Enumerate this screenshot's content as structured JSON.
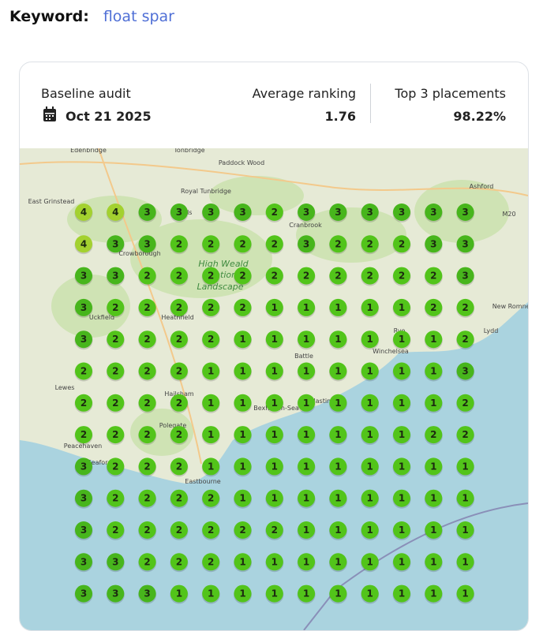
{
  "keyword": {
    "label": "Keyword:",
    "value": "float spar"
  },
  "stats": {
    "baseline_label": "Baseline audit",
    "baseline_date": "Oct 21 2025",
    "average_label": "Average ranking",
    "average_value": "1.76",
    "top3_label": "Top 3 placements",
    "top3_value": "98.22%"
  },
  "map": {
    "labels": [
      "Edenbridge",
      "Tonbridge",
      "Paddock Wood",
      "East Grinstead",
      "Royal Tunbridge",
      "Wells",
      "Cranbrook",
      "Ashford",
      "M20",
      "Crowborough",
      "High Weald",
      "National",
      "Landscape",
      "New Romney",
      "Lydd",
      "Rye",
      "Winchelsea",
      "Uckfield",
      "Heathfield",
      "Battle",
      "Lewes",
      "Hailsham",
      "Hastings",
      "Bexhill-on-Sea",
      "Polegate",
      "Peacehaven",
      "Seaford",
      "Eastbourne"
    ],
    "rank_colors": [
      "#52c41a",
      "#52c41a",
      "#47b51c",
      "#a3d12f"
    ],
    "grid": [
      [
        4,
        4,
        3,
        3,
        3,
        3,
        2,
        3,
        3,
        3,
        3,
        3,
        3
      ],
      [
        4,
        3,
        3,
        2,
        2,
        2,
        2,
        3,
        2,
        2,
        2,
        3,
        3
      ],
      [
        3,
        3,
        2,
        2,
        2,
        2,
        2,
        2,
        2,
        2,
        2,
        2,
        3
      ],
      [
        3,
        2,
        2,
        2,
        2,
        2,
        1,
        1,
        1,
        1,
        1,
        2,
        2
      ],
      [
        3,
        2,
        2,
        2,
        2,
        1,
        1,
        1,
        1,
        1,
        1,
        1,
        2
      ],
      [
        2,
        2,
        2,
        2,
        1,
        1,
        1,
        1,
        1,
        1,
        1,
        1,
        3
      ],
      [
        2,
        2,
        2,
        2,
        1,
        1,
        1,
        1,
        1,
        1,
        1,
        1,
        2
      ],
      [
        2,
        2,
        2,
        2,
        1,
        1,
        1,
        1,
        1,
        1,
        1,
        2,
        2
      ],
      [
        3,
        2,
        2,
        2,
        1,
        1,
        1,
        1,
        1,
        1,
        1,
        1,
        1
      ],
      [
        3,
        2,
        2,
        2,
        2,
        1,
        1,
        1,
        1,
        1,
        1,
        1,
        1
      ],
      [
        3,
        2,
        2,
        2,
        2,
        2,
        2,
        1,
        1,
        1,
        1,
        1,
        1
      ],
      [
        3,
        3,
        2,
        2,
        2,
        1,
        1,
        1,
        1,
        1,
        1,
        1,
        1
      ],
      [
        3,
        3,
        3,
        1,
        1,
        1,
        1,
        1,
        1,
        1,
        1,
        1,
        1
      ]
    ]
  }
}
